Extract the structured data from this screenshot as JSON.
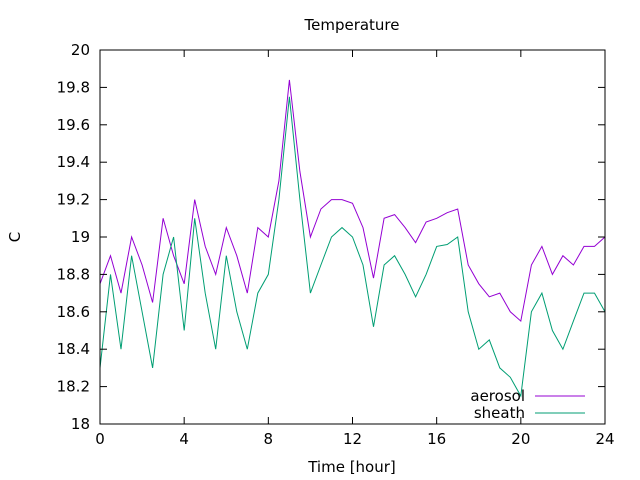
{
  "chart_data": {
    "type": "line",
    "title": "Temperature",
    "xlabel": "Time [hour]",
    "ylabel": "C",
    "xlim": [
      0,
      24
    ],
    "ylim": [
      18,
      20
    ],
    "x_ticks": [
      0,
      4,
      8,
      12,
      16,
      20,
      24
    ],
    "y_ticks": [
      "18",
      "18.2",
      "18.4",
      "18.6",
      "18.8",
      "19",
      "19.2",
      "19.4",
      "19.6",
      "19.8",
      "20"
    ],
    "legend_position": "bottom-right",
    "grid": false,
    "x": [
      0,
      0.5,
      1,
      1.5,
      2,
      2.5,
      3,
      3.5,
      4,
      4.5,
      5,
      5.5,
      6,
      6.5,
      7,
      7.5,
      8,
      8.5,
      9,
      9.5,
      10,
      10.5,
      11,
      11.5,
      12,
      12.5,
      13,
      13.5,
      14,
      14.5,
      15,
      15.5,
      16,
      16.5,
      17,
      17.5,
      18,
      18.5,
      19,
      19.5,
      20,
      20.5,
      21,
      21.5,
      22,
      22.5,
      23,
      23.5,
      24
    ],
    "series": [
      {
        "name": "aerosol",
        "color": "#9400d3",
        "values": [
          18.75,
          18.9,
          18.7,
          19.0,
          18.85,
          18.65,
          19.1,
          18.9,
          18.75,
          19.2,
          18.95,
          18.8,
          19.05,
          18.9,
          18.7,
          19.05,
          19.0,
          19.3,
          19.84,
          19.35,
          19.0,
          19.15,
          19.2,
          19.2,
          19.18,
          19.05,
          18.78,
          19.1,
          19.12,
          19.05,
          18.97,
          19.08,
          19.1,
          19.13,
          19.15,
          18.85,
          18.75,
          18.68,
          18.7,
          18.6,
          18.55,
          18.85,
          18.95,
          18.8,
          18.9,
          18.85,
          18.95,
          18.95,
          19.0
        ]
      },
      {
        "name": "sheath",
        "color": "#009e73",
        "values": [
          18.3,
          18.8,
          18.4,
          18.9,
          18.6,
          18.3,
          18.8,
          19.0,
          18.5,
          19.1,
          18.7,
          18.4,
          18.9,
          18.6,
          18.4,
          18.7,
          18.8,
          19.2,
          19.75,
          19.2,
          18.7,
          18.85,
          19.0,
          19.05,
          19.0,
          18.85,
          18.52,
          18.85,
          18.9,
          18.8,
          18.68,
          18.8,
          18.95,
          18.96,
          19.0,
          18.6,
          18.4,
          18.45,
          18.3,
          18.25,
          18.15,
          18.6,
          18.7,
          18.5,
          18.4,
          18.55,
          18.7,
          18.7,
          18.6
        ]
      }
    ]
  }
}
